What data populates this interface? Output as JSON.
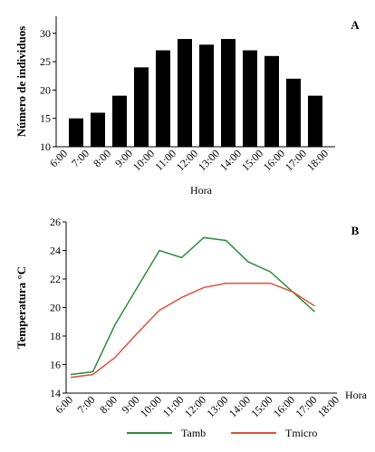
{
  "chart_data": [
    {
      "type": "bar",
      "label": "A",
      "ylabel": "Número de individuos",
      "xlabel": "Hora",
      "xticks": [
        "6:00",
        "7:00",
        "8:00",
        "9:00",
        "10:00",
        "11:00",
        "12:00",
        "13:00",
        "14:00",
        "15:00",
        "16:00",
        "17:00",
        "18:00"
      ],
      "values": [
        15,
        16,
        19,
        24,
        27,
        29,
        28,
        29,
        27,
        26,
        22,
        19
      ],
      "color": "#000000",
      "ylim": [
        10,
        33
      ],
      "yticks": [
        10,
        15,
        20,
        25,
        30
      ]
    },
    {
      "type": "line",
      "label": "B",
      "ylabel": "Temperatura °C",
      "xlabel": "Hora",
      "x": [
        "6:00",
        "7:00",
        "8:00",
        "9:00",
        "10:00",
        "11:00",
        "12:00",
        "13:00",
        "14:00",
        "15:00",
        "16:00",
        "17:00",
        "18:00"
      ],
      "series": [
        {
          "name": "Tamb",
          "color": "#2e8b3e",
          "values": [
            15.3,
            15.5,
            18.8,
            21.4,
            24,
            23.5,
            24.9,
            24.7,
            23.2,
            22.5,
            21.1,
            19.7,
            null
          ]
        },
        {
          "name": "Tmicro",
          "color": "#e0503a",
          "values": [
            15.1,
            15.3,
            16.5,
            18.2,
            19.8,
            20.7,
            21.4,
            21.7,
            21.7,
            21.7,
            21.1,
            20.1,
            null
          ]
        }
      ],
      "ylim": [
        14,
        26
      ],
      "yticks": [
        14,
        16,
        18,
        20,
        22,
        24,
        26
      ]
    }
  ]
}
